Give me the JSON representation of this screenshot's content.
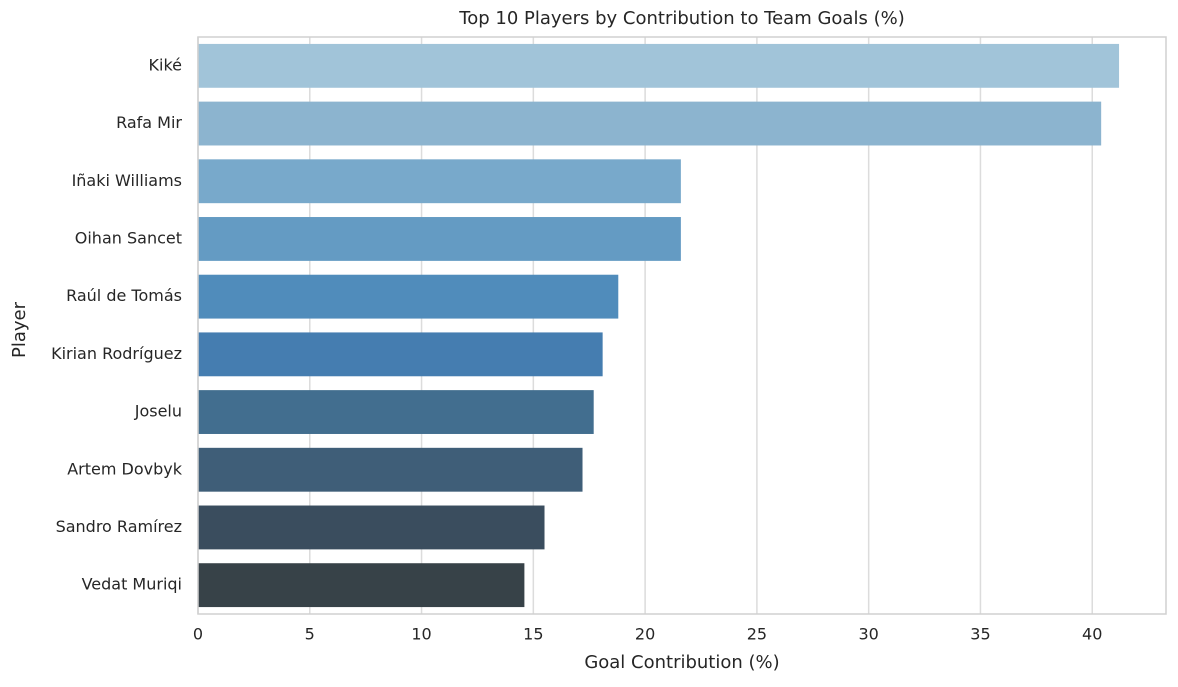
{
  "chart_data": {
    "type": "barh",
    "title": "Top 10 Players by Contribution to Team Goals (%)",
    "x_label": "Goal Contribution (%)",
    "y_label": "Player",
    "categories": [
      "Kiké",
      "Rafa Mir",
      "Iñaki Williams",
      "Oihan Sancet",
      "Raúl de Tomás",
      "Kirian Rodríguez",
      "Joselu",
      "Artem Dovbyk",
      "Sandro Ramírez",
      "Vedat Muriqi"
    ],
    "values": [
      41.2,
      40.4,
      21.6,
      21.6,
      18.8,
      18.1,
      17.7,
      17.2,
      15.5,
      14.6
    ],
    "colors": [
      "#a1c4d9",
      "#8cb4cf",
      "#78a9cb",
      "#649bc3",
      "#508cbb",
      "#457db0",
      "#426e8f",
      "#3f5e78",
      "#3a4d5e",
      "#374248"
    ],
    "xlim": [
      0,
      43.3
    ],
    "xticks": [
      0,
      5,
      10,
      15,
      20,
      25,
      30,
      35,
      40
    ],
    "grid": true
  }
}
